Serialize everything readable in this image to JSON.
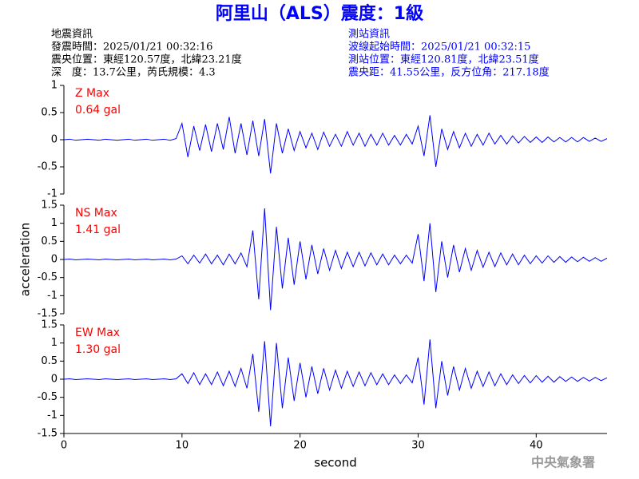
{
  "header": {
    "title": "阿里山（ALS）震度：1級",
    "left": [
      "地震資訊",
      "發震時間：2025/01/21 00:32:16",
      "震央位置：東經120.57度，北緯23.21度",
      "深　度：13.7公里，芮氏規模：4.3"
    ],
    "right": [
      "測站資訊",
      "波線起始時間：2025/01/21 00:32:15",
      "測站位置：東經120.81度，北緯23.51度",
      "震央距：41.55公里，反方位角：217.18度"
    ],
    "footer": "中央氣象署"
  },
  "chart_data": [
    {
      "type": "line",
      "label": "Z Max",
      "annotation": "0.64 gal",
      "color": "#0000ff",
      "ylim": [
        -1,
        1
      ],
      "yticks": [
        -1,
        -0.5,
        0,
        0.5,
        1
      ],
      "xlim": [
        0,
        46
      ],
      "x": [
        0,
        0.5,
        1,
        1.5,
        2,
        2.5,
        3,
        3.5,
        4,
        4.5,
        5,
        5.5,
        6,
        6.5,
        7,
        7.5,
        8,
        8.5,
        9,
        9.5,
        10,
        10.5,
        11,
        11.5,
        12,
        12.5,
        13,
        13.5,
        14,
        14.5,
        15,
        15.5,
        16,
        16.5,
        17,
        17.5,
        18,
        18.5,
        19,
        19.5,
        20,
        20.5,
        21,
        21.5,
        22,
        22.5,
        23,
        23.5,
        24,
        24.5,
        25,
        25.5,
        26,
        26.5,
        27,
        27.5,
        28,
        28.5,
        29,
        29.5,
        30,
        30.5,
        31,
        31.5,
        32,
        32.5,
        33,
        33.5,
        34,
        34.5,
        35,
        35.5,
        36,
        36.5,
        37,
        37.5,
        38,
        38.5,
        39,
        39.5,
        40,
        40.5,
        41,
        41.5,
        42,
        42.5,
        43,
        43.5,
        44,
        44.5,
        45,
        45.5,
        46
      ],
      "values": [
        0,
        0.01,
        -0.01,
        0,
        0.01,
        0,
        -0.01,
        0.01,
        0,
        -0.01,
        0,
        0.01,
        -0.01,
        0,
        0.01,
        -0.01,
        0,
        0.01,
        -0.01,
        0.02,
        0.3,
        -0.32,
        0.25,
        -0.2,
        0.28,
        -0.22,
        0.3,
        -0.18,
        0.42,
        -0.25,
        0.3,
        -0.28,
        0.35,
        -0.3,
        0.38,
        -0.62,
        0.3,
        -0.25,
        0.2,
        -0.2,
        0.15,
        -0.15,
        0.12,
        -0.18,
        0.14,
        -0.12,
        0.1,
        -0.12,
        0.15,
        -0.1,
        0.12,
        -0.12,
        0.1,
        -0.1,
        0.12,
        -0.1,
        0.08,
        -0.1,
        0.1,
        -0.08,
        0.25,
        -0.3,
        0.45,
        -0.5,
        0.2,
        -0.18,
        0.15,
        -0.15,
        0.12,
        -0.12,
        0.1,
        -0.1,
        0.12,
        -0.08,
        0.08,
        -0.08,
        0.07,
        -0.06,
        0.06,
        -0.05,
        0.05,
        -0.05,
        0.05,
        -0.04,
        0.04,
        -0.04,
        0.04,
        -0.04,
        0.04,
        -0.03,
        0.03,
        -0.03,
        0.02
      ]
    },
    {
      "type": "line",
      "label": "NS Max",
      "annotation": "1.41 gal",
      "ylabel": "acceleration",
      "color": "#0000ff",
      "ylim": [
        -1.5,
        1.5
      ],
      "yticks": [
        -1.5,
        -1,
        -0.5,
        0,
        0.5,
        1,
        1.5
      ],
      "xlim": [
        0,
        46
      ],
      "x": [
        0,
        0.5,
        1,
        1.5,
        2,
        2.5,
        3,
        3.5,
        4,
        4.5,
        5,
        5.5,
        6,
        6.5,
        7,
        7.5,
        8,
        8.5,
        9,
        9.5,
        10,
        10.5,
        11,
        11.5,
        12,
        12.5,
        13,
        13.5,
        14,
        14.5,
        15,
        15.5,
        16,
        16.5,
        17,
        17.5,
        18,
        18.5,
        19,
        19.5,
        20,
        20.5,
        21,
        21.5,
        22,
        22.5,
        23,
        23.5,
        24,
        24.5,
        25,
        25.5,
        26,
        26.5,
        27,
        27.5,
        28,
        28.5,
        29,
        29.5,
        30,
        30.5,
        31,
        31.5,
        32,
        32.5,
        33,
        33.5,
        34,
        34.5,
        35,
        35.5,
        36,
        36.5,
        37,
        37.5,
        38,
        38.5,
        39,
        39.5,
        40,
        40.5,
        41,
        41.5,
        42,
        42.5,
        43,
        43.5,
        44,
        44.5,
        45,
        45.5,
        46
      ],
      "values": [
        0,
        0.01,
        -0.01,
        0,
        0.01,
        0,
        -0.01,
        0.01,
        0,
        -0.01,
        0,
        0.01,
        -0.01,
        0,
        0.01,
        -0.01,
        0,
        0.01,
        -0.01,
        0.01,
        0.1,
        -0.12,
        0.12,
        -0.1,
        0.15,
        -0.12,
        0.12,
        -0.15,
        0.15,
        -0.12,
        0.18,
        -0.2,
        0.8,
        -1.1,
        1.41,
        -1.4,
        0.9,
        -0.8,
        0.6,
        -0.7,
        0.5,
        -0.55,
        0.4,
        -0.4,
        0.3,
        -0.3,
        0.25,
        -0.25,
        0.2,
        -0.2,
        0.2,
        -0.18,
        0.18,
        -0.15,
        0.15,
        -0.15,
        0.12,
        -0.12,
        0.12,
        -0.1,
        0.7,
        -0.6,
        1.0,
        -0.9,
        0.5,
        -0.5,
        0.4,
        -0.35,
        0.3,
        -0.3,
        0.25,
        -0.22,
        0.2,
        -0.2,
        0.18,
        -0.15,
        0.15,
        -0.15,
        0.12,
        -0.12,
        0.1,
        -0.1,
        0.1,
        -0.08,
        0.08,
        -0.08,
        0.07,
        -0.06,
        0.06,
        -0.05,
        0.05,
        -0.05,
        0.04
      ]
    },
    {
      "type": "line",
      "label": "EW Max",
      "annotation": "1.30 gal",
      "xlabel": "second",
      "color": "#0000ff",
      "ylim": [
        -1.5,
        1.5
      ],
      "yticks": [
        -1.5,
        -1,
        -0.5,
        0,
        0.5,
        1,
        1.5
      ],
      "xlim": [
        0,
        46
      ],
      "xticks": [
        0,
        10,
        20,
        30,
        40
      ],
      "x": [
        0,
        0.5,
        1,
        1.5,
        2,
        2.5,
        3,
        3.5,
        4,
        4.5,
        5,
        5.5,
        6,
        6.5,
        7,
        7.5,
        8,
        8.5,
        9,
        9.5,
        10,
        10.5,
        11,
        11.5,
        12,
        12.5,
        13,
        13.5,
        14,
        14.5,
        15,
        15.5,
        16,
        16.5,
        17,
        17.5,
        18,
        18.5,
        19,
        19.5,
        20,
        20.5,
        21,
        21.5,
        22,
        22.5,
        23,
        23.5,
        24,
        24.5,
        25,
        25.5,
        26,
        26.5,
        27,
        27.5,
        28,
        28.5,
        29,
        29.5,
        30,
        30.5,
        31,
        31.5,
        32,
        32.5,
        33,
        33.5,
        34,
        34.5,
        35,
        35.5,
        36,
        36.5,
        37,
        37.5,
        38,
        38.5,
        39,
        39.5,
        40,
        40.5,
        41,
        41.5,
        42,
        42.5,
        43,
        43.5,
        44,
        44.5,
        45,
        45.5,
        46
      ],
      "values": [
        0,
        0.01,
        -0.01,
        0,
        0.01,
        0,
        -0.01,
        0.01,
        0,
        -0.01,
        0,
        0.01,
        -0.01,
        0,
        0.01,
        -0.01,
        0,
        0.01,
        -0.01,
        0.01,
        0.15,
        -0.12,
        0.18,
        -0.15,
        0.15,
        -0.15,
        0.2,
        -0.18,
        0.22,
        -0.2,
        0.3,
        -0.25,
        0.7,
        -0.9,
        1.05,
        -1.3,
        1.0,
        -0.8,
        0.6,
        -0.6,
        0.45,
        -0.5,
        0.35,
        -0.4,
        0.3,
        -0.3,
        0.25,
        -0.25,
        0.22,
        -0.2,
        0.2,
        -0.18,
        0.18,
        -0.15,
        0.15,
        -0.15,
        0.12,
        -0.12,
        0.12,
        -0.1,
        0.6,
        -0.7,
        1.1,
        -0.8,
        0.5,
        -0.45,
        0.35,
        -0.3,
        0.3,
        -0.25,
        0.22,
        -0.2,
        0.2,
        -0.18,
        0.15,
        -0.15,
        0.12,
        -0.12,
        0.1,
        -0.1,
        0.1,
        -0.08,
        0.08,
        -0.08,
        0.07,
        -0.06,
        0.06,
        -0.06,
        0.05,
        -0.05,
        0.05,
        -0.04,
        0.04
      ]
    }
  ]
}
